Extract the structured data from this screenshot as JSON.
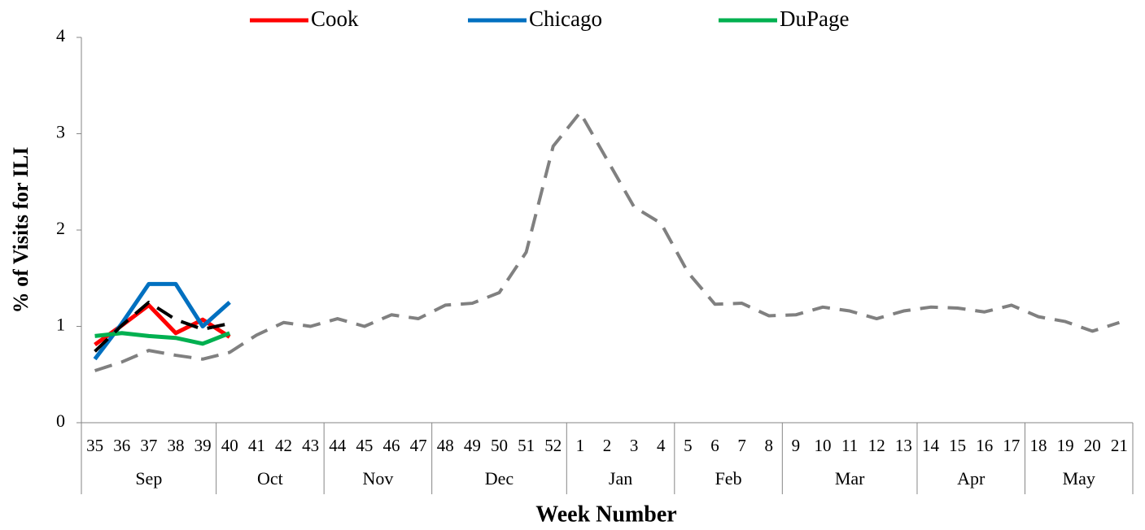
{
  "chart_data": {
    "type": "line",
    "y_label": "% of Visits for ILI",
    "x_label": "Week Number",
    "categories": [
      "35",
      "36",
      "37",
      "38",
      "39",
      "40",
      "41",
      "42",
      "43",
      "44",
      "45",
      "46",
      "47",
      "48",
      "49",
      "50",
      "51",
      "52",
      "1",
      "2",
      "3",
      "4",
      "5",
      "6",
      "7",
      "8",
      "9",
      "10",
      "11",
      "12",
      "13",
      "14",
      "15",
      "16",
      "17",
      "18",
      "19",
      "20",
      "21"
    ],
    "groups": [
      {
        "label": "Sep",
        "span": 5
      },
      {
        "label": "Oct",
        "span": 4
      },
      {
        "label": "Nov",
        "span": 4
      },
      {
        "label": "Dec",
        "span": 5
      },
      {
        "label": "Jan",
        "span": 4
      },
      {
        "label": "Feb",
        "span": 4
      },
      {
        "label": "Mar",
        "span": 5
      },
      {
        "label": "Apr",
        "span": 4
      },
      {
        "label": "May",
        "span": 4
      }
    ],
    "series": [
      {
        "color": "#808080",
        "dash": true,
        "values": [
          0.54,
          0.63,
          0.75,
          0.7,
          0.66,
          0.73,
          0.91,
          1.04,
          1.0,
          1.08,
          1.0,
          1.12,
          1.08,
          1.22,
          1.24,
          1.35,
          1.77,
          2.87,
          3.22,
          2.73,
          2.24,
          2.07,
          1.56,
          1.23,
          1.24,
          1.11,
          1.12,
          1.2,
          1.16,
          1.08,
          1.16,
          1.2,
          1.19,
          1.15,
          1.22,
          1.1,
          1.05,
          0.95,
          1.04
        ]
      },
      {
        "name": "Cook",
        "color": "#ff0000",
        "values": [
          0.81,
          1.01,
          1.22,
          0.93,
          1.07,
          0.89,
          null,
          null,
          null,
          null,
          null,
          null,
          null,
          null,
          null,
          null,
          null,
          null,
          null,
          null,
          null,
          null,
          null,
          null,
          null,
          null,
          null,
          null,
          null,
          null,
          null,
          null,
          null,
          null,
          null,
          null,
          null,
          null,
          null
        ]
      },
      {
        "name": "Chicago",
        "color": "#0070c0",
        "values": [
          0.66,
          1.03,
          1.44,
          1.44,
          1.0,
          1.25,
          null,
          null,
          null,
          null,
          null,
          null,
          null,
          null,
          null,
          null,
          null,
          null,
          null,
          null,
          null,
          null,
          null,
          null,
          null,
          null,
          null,
          null,
          null,
          null,
          null,
          null,
          null,
          null,
          null,
          null,
          null,
          null,
          null
        ]
      },
      {
        "name": "DuPage",
        "color": "#00b050",
        "values": [
          0.9,
          0.93,
          0.9,
          0.88,
          0.82,
          0.93,
          null,
          null,
          null,
          null,
          null,
          null,
          null,
          null,
          null,
          null,
          null,
          null,
          null,
          null,
          null,
          null,
          null,
          null,
          null,
          null,
          null,
          null,
          null,
          null,
          null,
          null,
          null,
          null,
          null,
          null,
          null,
          null,
          null
        ]
      },
      {
        "color": "#000000",
        "dash": true,
        "values": [
          0.74,
          1.01,
          1.25,
          1.07,
          0.97,
          1.03,
          null,
          null,
          null,
          null,
          null,
          null,
          null,
          null,
          null,
          null,
          null,
          null,
          null,
          null,
          null,
          null,
          null,
          null,
          null,
          null,
          null,
          null,
          null,
          null,
          null,
          null,
          null,
          null,
          null,
          null,
          null,
          null,
          null
        ]
      }
    ],
    "ylim": [
      0,
      4
    ],
    "yticks": [
      0,
      1,
      2,
      3,
      4
    ],
    "grid": false,
    "legend": "top"
  }
}
